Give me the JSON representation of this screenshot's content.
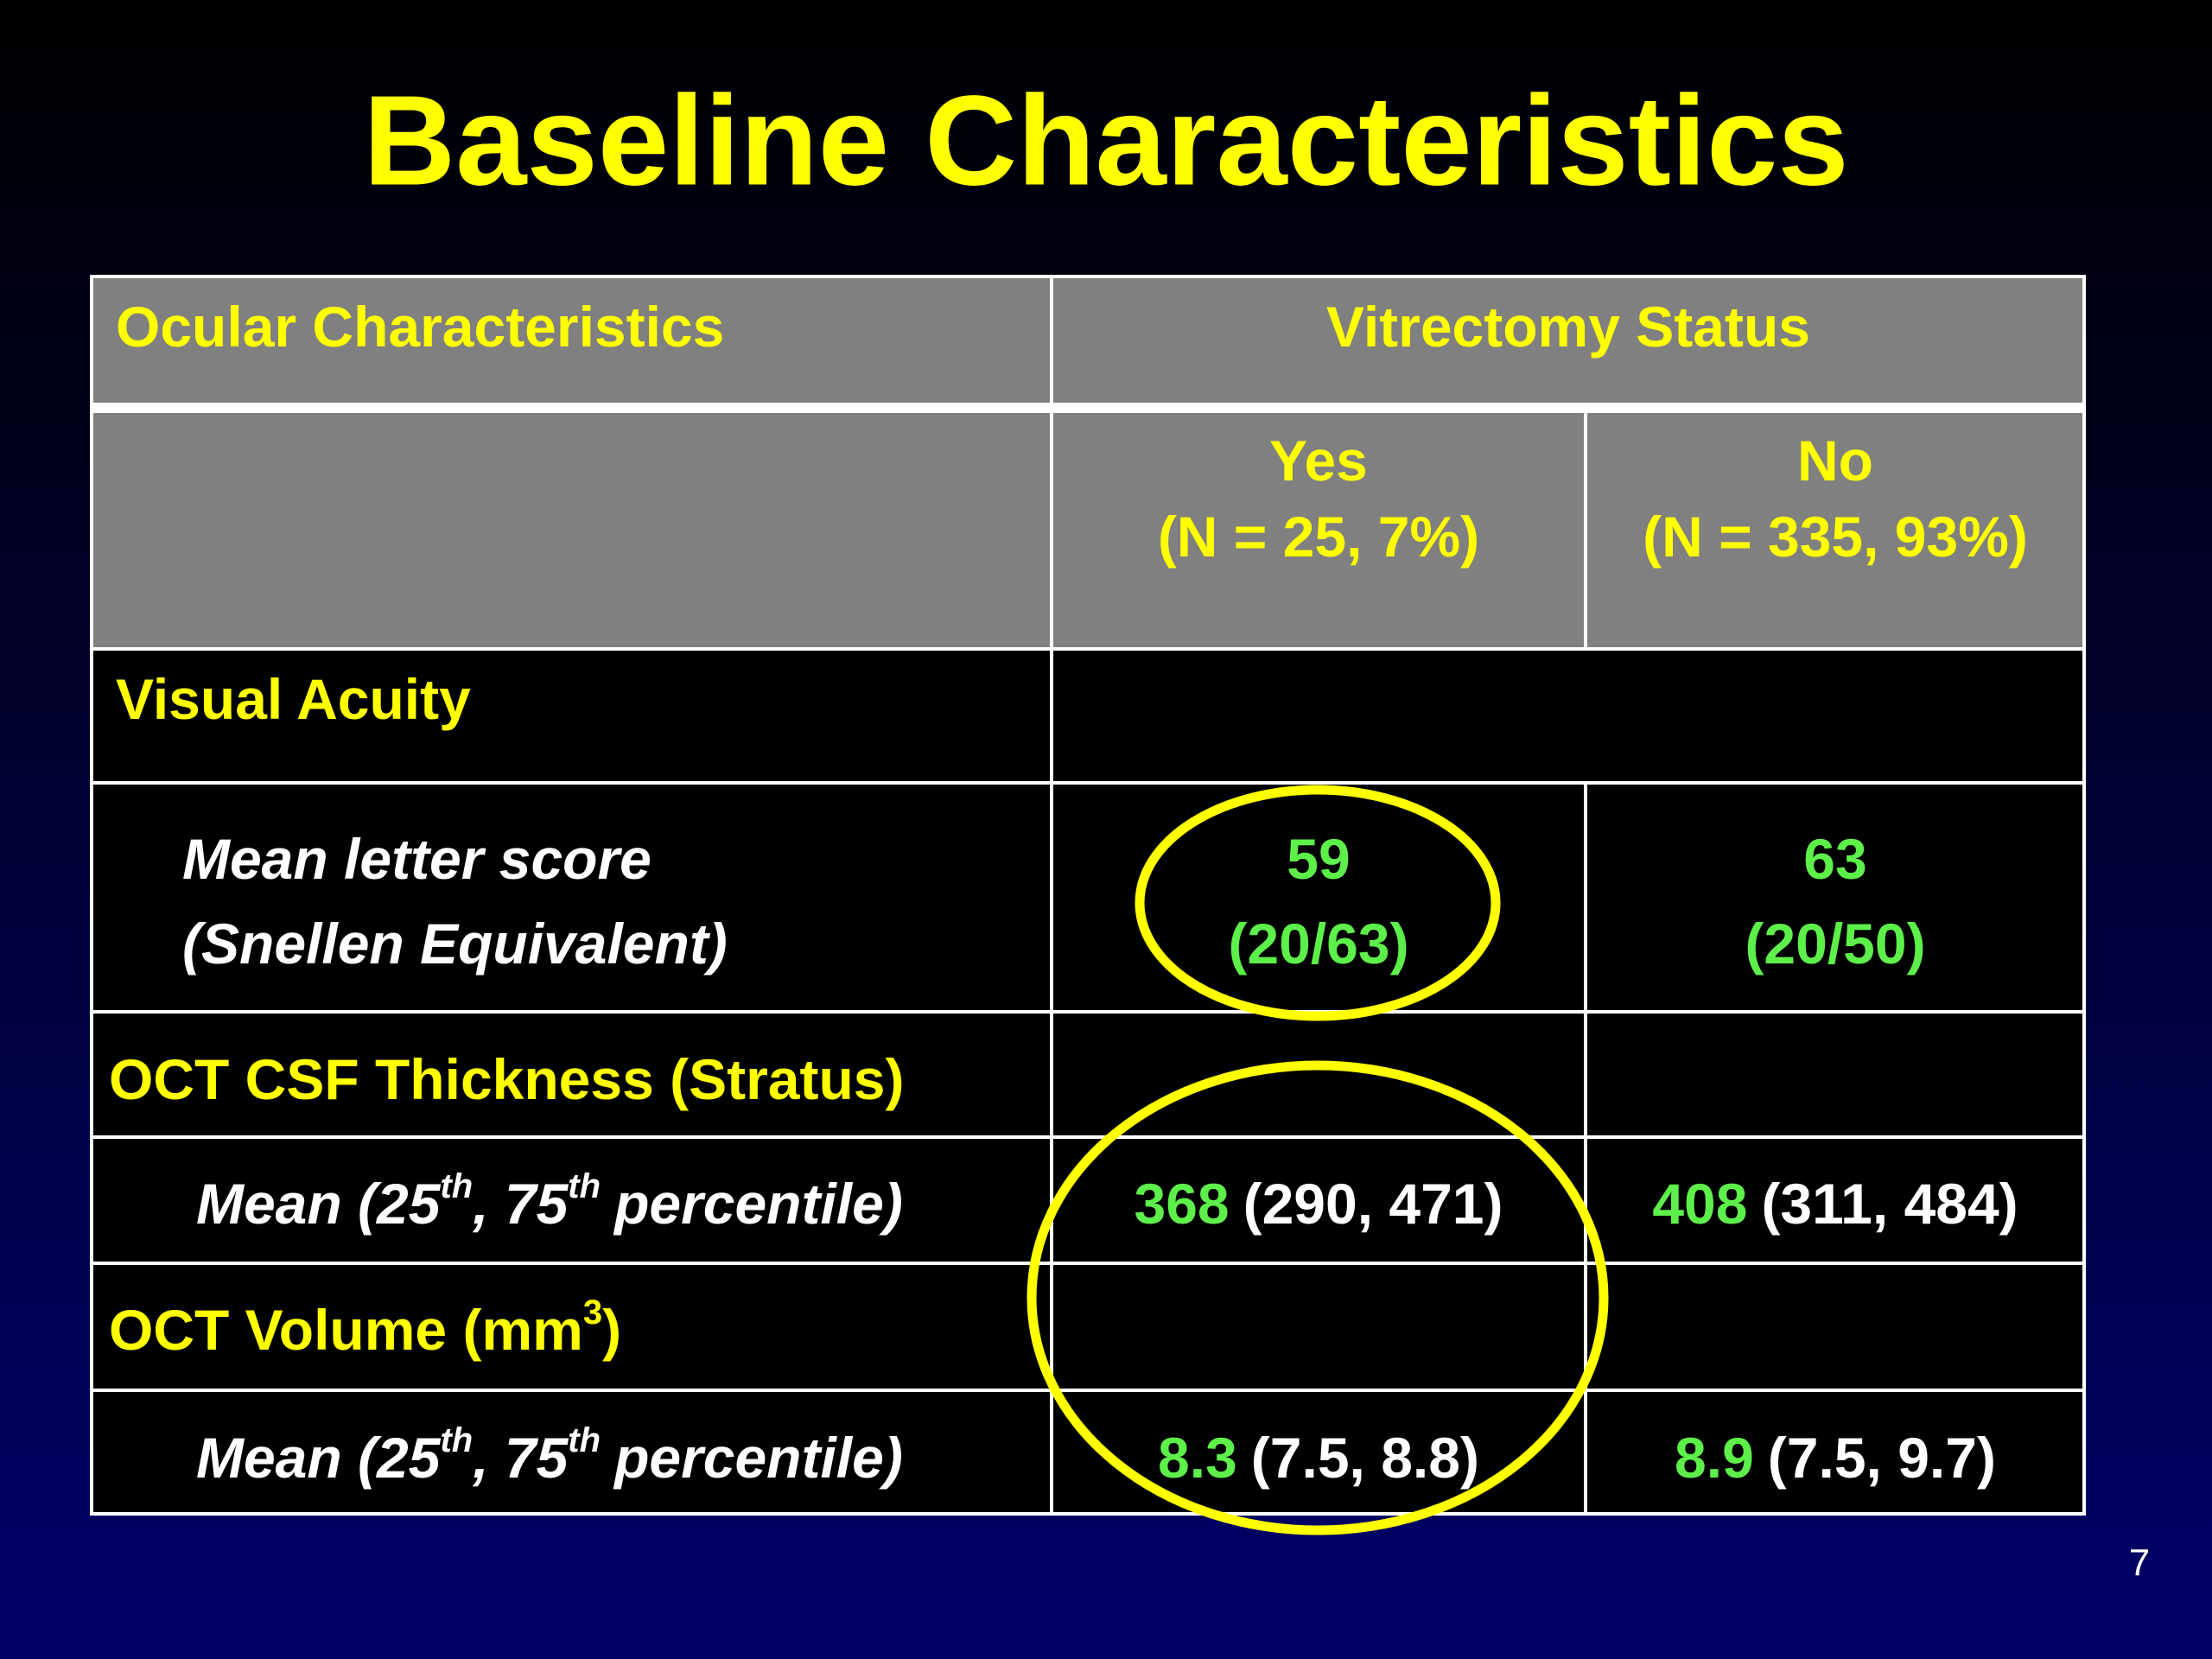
{
  "title": "Baseline Characteristics",
  "table": {
    "header": {
      "characteristic": "Ocular Characteristics",
      "group": "Vitrectomy Status",
      "yes": [
        "Yes",
        "(N = 25, 7%)"
      ],
      "no": [
        "No",
        "(N = 335, 93%)"
      ]
    },
    "rows": [
      {
        "label": [
          "Visual Acuity"
        ]
      },
      {
        "label": [
          "Mean letter score",
          "(Snellen Equivalent)"
        ],
        "yes": [
          "59",
          "(20/63)"
        ],
        "no": [
          "63",
          "(20/50)"
        ]
      },
      {
        "label": [
          "OCT CSF Thickness (Stratus)"
        ]
      },
      {
        "label": [
          "Mean (25",
          "th",
          ", 75",
          "th",
          "percentile)"
        ],
        "yes": [
          "368",
          "(290, 471)"
        ],
        "no": [
          "408",
          "(311, 484)"
        ]
      },
      {
        "label": [
          "OCT Volume (mm",
          "3",
          ")"
        ]
      },
      {
        "label": [
          "Mean (25",
          "th",
          ", 75",
          "th",
          "percentile)"
        ],
        "yes": [
          "8.3",
          "(7.5, 8.8)"
        ],
        "no": [
          "8.9",
          "(7.5, 9.7)"
        ]
      }
    ]
  },
  "page_number": "7"
}
